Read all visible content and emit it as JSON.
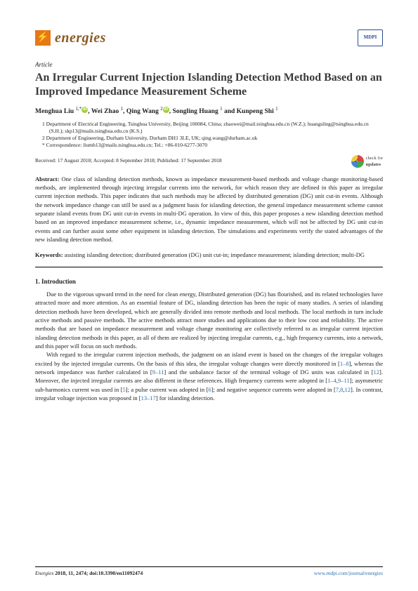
{
  "header": {
    "journal_name": "energies",
    "mdpi": "MDPI"
  },
  "article": {
    "label": "Article",
    "title": "An Irregular Current Injection Islanding Detection Method Based on an Improved Impedance Measurement Scheme",
    "authors_html": "Menghua Liu <sup>1,*</sup><span class='orcid'>iD</span>, Wei Zhao <sup>1</sup>, Qing Wang <sup>2</sup><span class='orcid'>iD</span>, Songling Huang <sup>1</sup> and Kunpeng Shi <sup>1</sup>",
    "affil1": "1   Department of Electrical Engineering, Tsinghua University, Beijing 100084, China; zhaowei@mail.tsinghua.edu.cn (W.Z.); huangsling@tsinghua.edu.cn (S.H.); skp13@mails.tsinghua.edu.cn (K.S.)",
    "affil2": "2   Department of Engineering, Durham University, Durham DH1 3LE, UK; qing.wang@durham.ac.uk",
    "affilc": "*   Correspondence: liumh13@mails.tsinghua.edu.cn; Tel.: +86-010-6277-3070",
    "dates": "Received: 17 August 2018; Accepted: 8 September 2018; Published: 17 September 2018",
    "check_updates1": "check for",
    "check_updates2": "updates",
    "abstract_label": "Abstract:",
    "abstract": " One class of islanding detection methods, known as impedance measurement-based methods and voltage change monitoring-based methods, are implemented through injecting irregular currents into the network, for which reason they are defined in this paper as irregular current injection methods. This paper indicates that such methods may be affected by distributed generation (DG) unit cut-in events. Although the network impedance change can still be used as a judgment basis for islanding detection, the general impedance measurement scheme cannot separate island events from DG unit cut-in events in multi-DG operation. In view of this, this paper proposes a new islanding detection method based on an improved impedance measurement scheme, i.e., dynamic impedance measurement, which will not be affected by DG unit cut-in events and can further assist some other equipment in islanding detection. The simulations and experiments verify the stated advantages of the new islanding detection method.",
    "keywords_label": "Keywords:",
    "keywords": " assisting islanding detection; distributed generation (DG) unit cut-in; impedance measurement; islanding detection; multi-DG",
    "section1_head": "1. Introduction",
    "para1": "Due to the vigorous upward trend in the need for clean energy, Distributed generation (DG) has flourished, and its related technologies have attracted more and more attention. As an essential feature of DG, islanding detection has been the topic of many studies. A series of islanding detection methods have been developed, which are generally divided into remote methods and local methods. The local methods in turn include active methods and passive methods. The active methods attract more studies and applications due to their low cost and reliability. The active methods that are based on impedance measurement and voltage change monitoring are collectively referred to as irregular current injection islanding detection methods in this paper, as all of them are realized by injecting irregular currents, e.g., high frequency currents, into a network, and this paper will focus on such methods.",
    "para2a": "With regard to the irregular current injection methods, the judgment on an island event is based on the changes of the irregular voltages excited by the injected irregular currents. On the basis of this idea, the irregular voltage changes were directly monitored in [",
    "para2b": "], whereas the network impedance was further calculated in [",
    "para2c": "] and the unbalance factor of the terminal voltage of DG units was calculated in [",
    "para2d": "]. Moreover, the injected irregular currents are also different in these references. High frequency currents were adopted in [",
    "para2e": "]; asymmetric sub-harmonics current was used in [",
    "para2f": "]; a pulse current was adopted in [",
    "para2g": "]; and negative sequence currents were adopted in [",
    "para2h": "]. In contrast, irregular voltage injection was proposed in [",
    "para2i": "] for islanding detection.",
    "r1": "1",
    "rdash": "–",
    "r4": "4",
    "r5": "5",
    "r6": "6",
    "r7": "7",
    "r8": "8",
    "r9": "9",
    "r11": "11",
    "r12": "12",
    "r13": "13",
    "r17": "17"
  },
  "footer": {
    "left_i": "Energies",
    "left": " 2018, 11, 2474; doi:10.3390/en11092474",
    "right": "www.mdpi.com/journal/energies"
  }
}
